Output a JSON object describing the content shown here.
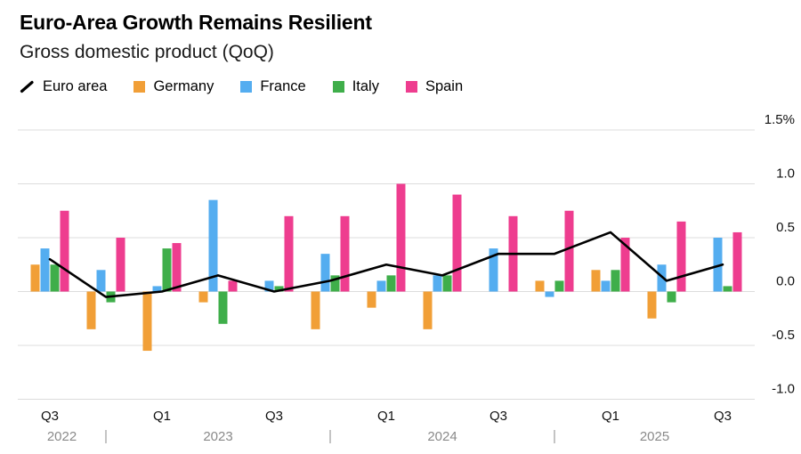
{
  "header": {
    "title": "Euro-Area Growth Remains Resilient",
    "subtitle": "Gross domestic product (QoQ)"
  },
  "legend": {
    "items": [
      {
        "label": "Euro area",
        "type": "line",
        "color": "#000000"
      },
      {
        "label": "Germany",
        "type": "bar",
        "color": "#F19F37"
      },
      {
        "label": "France",
        "type": "bar",
        "color": "#54ADF0"
      },
      {
        "label": "Italy",
        "type": "bar",
        "color": "#3FAE4A"
      },
      {
        "label": "Spain",
        "type": "bar",
        "color": "#EE3D8F"
      }
    ]
  },
  "chart_data": {
    "type": "bar+line",
    "title": "Euro-Area Growth Remains Resilient",
    "subtitle": "Gross domestic product (QoQ)",
    "unit": "%",
    "categories": [
      "Q3 2022",
      "Q4 2022",
      "Q1 2023",
      "Q2 2023",
      "Q3 2023",
      "Q4 2023",
      "Q1 2024",
      "Q2 2024",
      "Q3 2024",
      "Q4 2024",
      "Q1 2025",
      "Q2 2025",
      "Q3 2025"
    ],
    "x_tick_labels": [
      "Q3",
      "",
      "Q1",
      "",
      "Q3",
      "",
      "Q1",
      "",
      "Q3",
      "",
      "Q1",
      "",
      "Q3"
    ],
    "series": [
      {
        "name": "Germany",
        "key": "germany",
        "color": "#F19F37",
        "values": [
          0.25,
          -0.35,
          -0.55,
          -0.1,
          0,
          -0.35,
          -0.15,
          -0.35,
          0,
          0.1,
          0.2,
          -0.25,
          0
        ]
      },
      {
        "name": "France",
        "key": "france",
        "color": "#54ADF0",
        "values": [
          0.4,
          0.2,
          0.05,
          0.85,
          0.1,
          0.35,
          0.1,
          0.15,
          0.4,
          -0.05,
          0.1,
          0.25,
          0.5
        ]
      },
      {
        "name": "Italy",
        "key": "italy",
        "color": "#3FAE4A",
        "values": [
          0.25,
          -0.1,
          0.4,
          -0.3,
          0.05,
          0.15,
          0.15,
          0.15,
          0,
          0.1,
          0.2,
          -0.1,
          0.05
        ]
      },
      {
        "name": "Spain",
        "key": "spain",
        "color": "#EE3D8F",
        "values": [
          0.75,
          0.5,
          0.45,
          0.1,
          0.7,
          0.7,
          1.0,
          0.9,
          0.7,
          0.75,
          0.5,
          0.65,
          0.55
        ]
      }
    ],
    "line_series": {
      "name": "Euro area",
      "key": "euro-area",
      "color": "#000000",
      "values": [
        0.3,
        -0.05,
        0,
        0.15,
        0,
        0.1,
        0.25,
        0.15,
        0.35,
        0.35,
        0.55,
        0.1,
        0.25
      ]
    },
    "ylim": [
      -1.0,
      1.5
    ],
    "yticks": [
      1.5,
      1.0,
      0.5,
      0.0,
      -0.5,
      -1.0
    ],
    "ytick_labels": [
      "1.5%",
      "1.0",
      "0.5",
      "0.0",
      "-0.5",
      "-1.0"
    ],
    "years": [
      {
        "label": "2022",
        "span": [
          0,
          1
        ]
      },
      {
        "label": "2023",
        "span": [
          2,
          5
        ]
      },
      {
        "label": "2024",
        "span": [
          6,
          9
        ]
      },
      {
        "label": "2025",
        "span": [
          10,
          12
        ]
      }
    ],
    "grid": true,
    "legend_position": "top"
  }
}
